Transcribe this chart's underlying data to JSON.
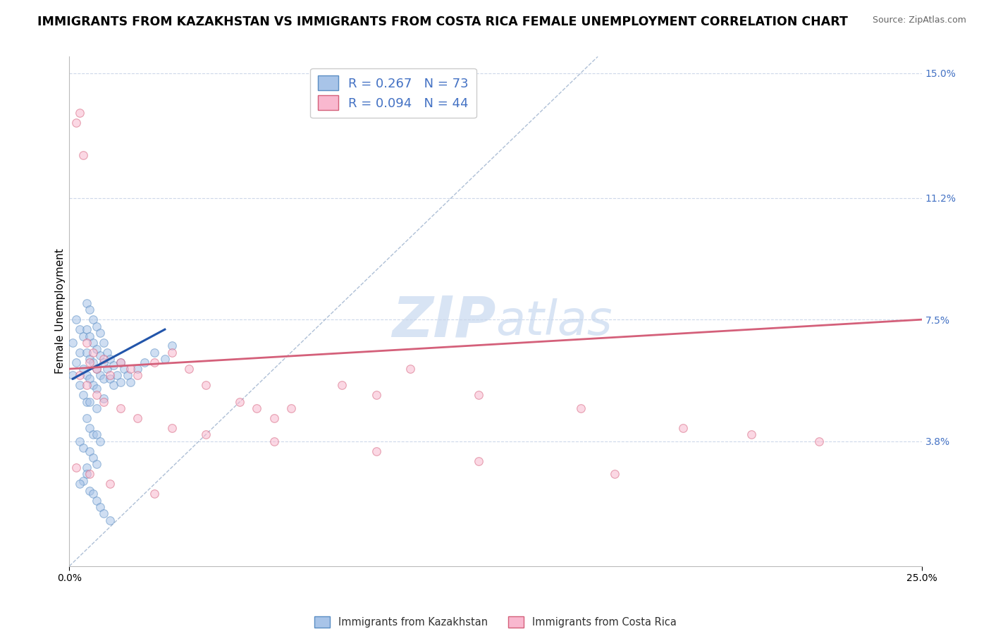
{
  "title": "IMMIGRANTS FROM KAZAKHSTAN VS IMMIGRANTS FROM COSTA RICA FEMALE UNEMPLOYMENT CORRELATION CHART",
  "source": "Source: ZipAtlas.com",
  "ylabel": "Female Unemployment",
  "xlim": [
    0.0,
    0.25
  ],
  "ylim": [
    0.0,
    0.155
  ],
  "ytick_positions": [
    0.038,
    0.075,
    0.112,
    0.15
  ],
  "ytick_labels": [
    "3.8%",
    "7.5%",
    "11.2%",
    "15.0%"
  ],
  "legend_entries": [
    {
      "label_r": "R = 0.267",
      "label_n": "N = 73",
      "color": "#a8c4e8"
    },
    {
      "label_r": "R = 0.094",
      "label_n": "N = 44",
      "color": "#f9b8cf"
    }
  ],
  "series_kazakhstan": {
    "color": "#a8c4e8",
    "edge_color": "#5b8ec4",
    "size": 70,
    "alpha": 0.55,
    "x": [
      0.001,
      0.001,
      0.002,
      0.002,
      0.003,
      0.003,
      0.003,
      0.004,
      0.004,
      0.004,
      0.005,
      0.005,
      0.005,
      0.005,
      0.005,
      0.006,
      0.006,
      0.006,
      0.006,
      0.006,
      0.007,
      0.007,
      0.007,
      0.007,
      0.008,
      0.008,
      0.008,
      0.008,
      0.008,
      0.009,
      0.009,
      0.009,
      0.01,
      0.01,
      0.01,
      0.01,
      0.011,
      0.011,
      0.012,
      0.012,
      0.013,
      0.013,
      0.014,
      0.015,
      0.015,
      0.016,
      0.017,
      0.018,
      0.02,
      0.022,
      0.025,
      0.028,
      0.03,
      0.005,
      0.006,
      0.007,
      0.003,
      0.004,
      0.008,
      0.009,
      0.006,
      0.007,
      0.008,
      0.005,
      0.005,
      0.004,
      0.003,
      0.006,
      0.007,
      0.008,
      0.009,
      0.01,
      0.012
    ],
    "y": [
      0.068,
      0.058,
      0.075,
      0.062,
      0.072,
      0.065,
      0.055,
      0.07,
      0.06,
      0.052,
      0.08,
      0.072,
      0.065,
      0.058,
      0.05,
      0.078,
      0.07,
      0.063,
      0.057,
      0.05,
      0.075,
      0.068,
      0.062,
      0.055,
      0.073,
      0.066,
      0.06,
      0.054,
      0.048,
      0.071,
      0.064,
      0.058,
      0.068,
      0.062,
      0.057,
      0.051,
      0.065,
      0.06,
      0.063,
      0.057,
      0.061,
      0.055,
      0.058,
      0.062,
      0.056,
      0.06,
      0.058,
      0.056,
      0.06,
      0.062,
      0.065,
      0.063,
      0.067,
      0.045,
      0.042,
      0.04,
      0.038,
      0.036,
      0.04,
      0.038,
      0.035,
      0.033,
      0.031,
      0.03,
      0.028,
      0.026,
      0.025,
      0.023,
      0.022,
      0.02,
      0.018,
      0.016,
      0.014
    ]
  },
  "series_costa_rica": {
    "color": "#f9b8cf",
    "edge_color": "#d4607a",
    "size": 70,
    "alpha": 0.55,
    "x": [
      0.002,
      0.003,
      0.004,
      0.005,
      0.006,
      0.007,
      0.008,
      0.01,
      0.012,
      0.015,
      0.018,
      0.02,
      0.025,
      0.03,
      0.035,
      0.04,
      0.05,
      0.06,
      0.065,
      0.08,
      0.09,
      0.1,
      0.12,
      0.15,
      0.18,
      0.2,
      0.22,
      0.003,
      0.005,
      0.008,
      0.01,
      0.015,
      0.02,
      0.03,
      0.04,
      0.06,
      0.09,
      0.12,
      0.16,
      0.002,
      0.006,
      0.012,
      0.025,
      0.055
    ],
    "y": [
      0.135,
      0.138,
      0.125,
      0.068,
      0.062,
      0.065,
      0.06,
      0.063,
      0.058,
      0.062,
      0.06,
      0.058,
      0.062,
      0.065,
      0.06,
      0.055,
      0.05,
      0.045,
      0.048,
      0.055,
      0.052,
      0.06,
      0.052,
      0.048,
      0.042,
      0.04,
      0.038,
      0.058,
      0.055,
      0.052,
      0.05,
      0.048,
      0.045,
      0.042,
      0.04,
      0.038,
      0.035,
      0.032,
      0.028,
      0.03,
      0.028,
      0.025,
      0.022,
      0.048
    ]
  },
  "regression_kazakhstan": {
    "color": "#2255aa",
    "linewidth": 2.2,
    "x_start": 0.001,
    "x_end": 0.028,
    "y_start": 0.057,
    "y_end": 0.072
  },
  "regression_costa_rica": {
    "color": "#d4607a",
    "linewidth": 2.0,
    "x_start": 0.0,
    "x_end": 0.25,
    "y_start": 0.06,
    "y_end": 0.075
  },
  "diagonal_line": {
    "color": "#9ab0cc",
    "linewidth": 1.0,
    "linestyle": "--",
    "x_start": 0.0,
    "x_end": 0.155,
    "y_start": 0.0,
    "y_end": 0.155
  },
  "grid_color": "#c8d4e8",
  "background_color": "#ffffff",
  "watermark_zip": "ZIP",
  "watermark_atlas": "atlas",
  "watermark_color": "#d8e4f4",
  "watermark_fontsize": 58,
  "title_fontsize": 12.5,
  "ylabel_fontsize": 11,
  "tick_fontsize": 10,
  "source_fontsize": 9
}
